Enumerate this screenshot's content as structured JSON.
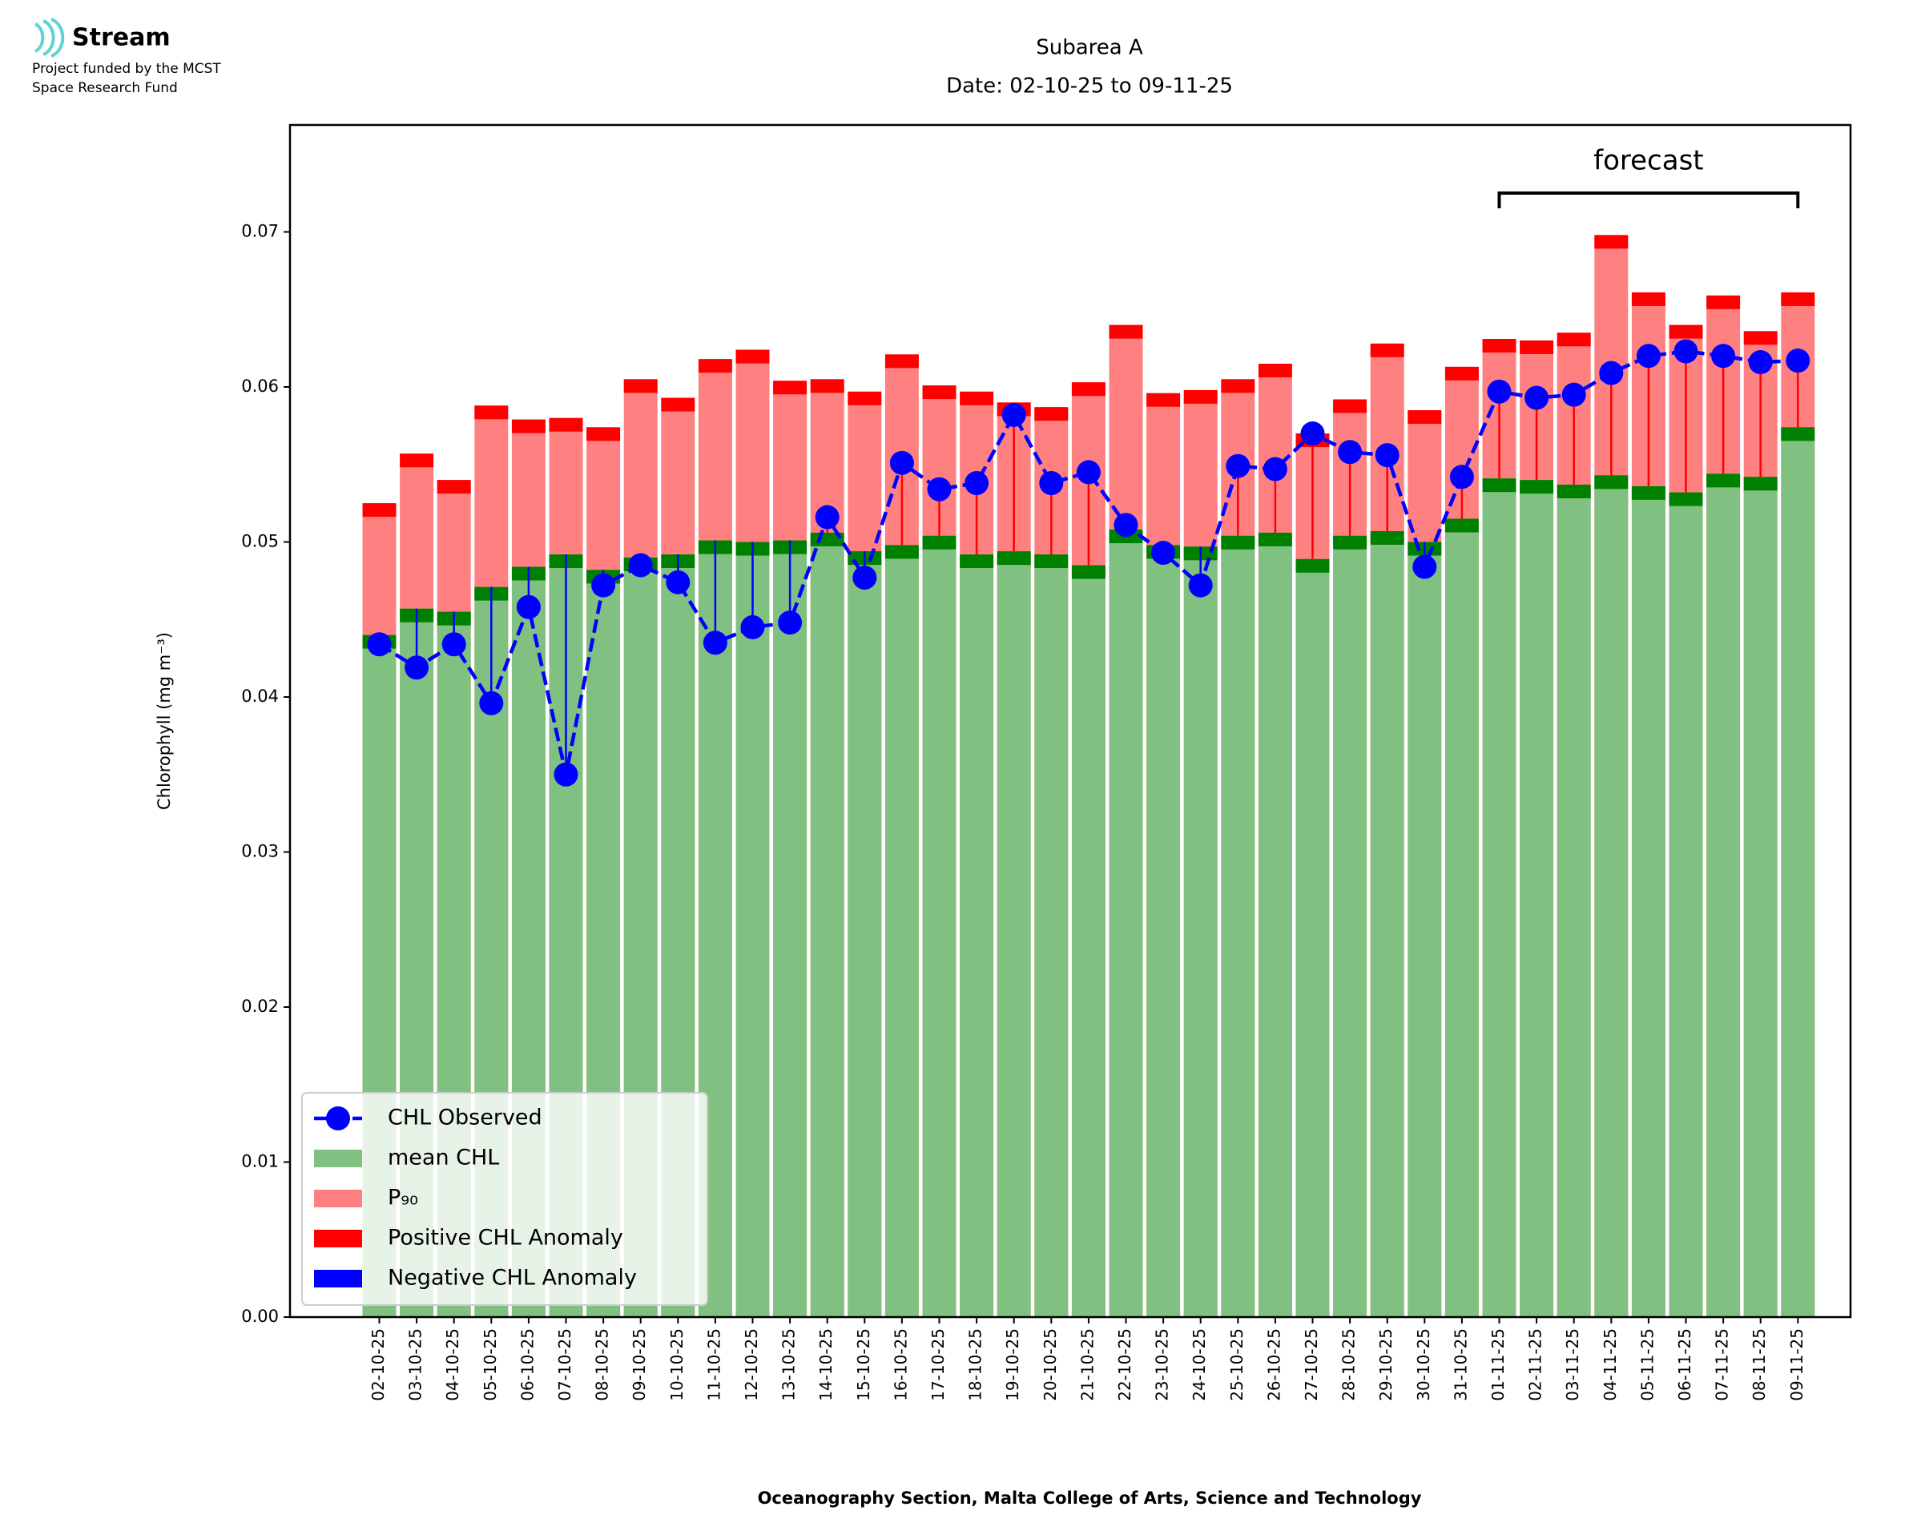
{
  "logo": {
    "name": "Stream",
    "lines": [
      "Project funded by the MCST",
      "Space Research Fund"
    ]
  },
  "chart_data": {
    "type": "bar",
    "title": "Subarea A",
    "subtitle": "Date: 02-10-25 to 09-11-25",
    "y_label": "Chlorophyll (mg m⁻³)",
    "x_label": "Oceanography Section, Malta College of Arts, Science and Technology",
    "annotation": {
      "label": "forecast",
      "from": "01-11-25",
      "to": "09-11-25"
    },
    "categories": [
      "02-10-25",
      "03-10-25",
      "04-10-25",
      "05-10-25",
      "06-10-25",
      "07-10-25",
      "08-10-25",
      "09-10-25",
      "10-10-25",
      "11-10-25",
      "12-10-25",
      "13-10-25",
      "14-10-25",
      "15-10-25",
      "16-10-25",
      "17-10-25",
      "18-10-25",
      "19-10-25",
      "20-10-25",
      "21-10-25",
      "22-10-25",
      "23-10-25",
      "24-10-25",
      "25-10-25",
      "26-10-25",
      "27-10-25",
      "28-10-25",
      "29-10-25",
      "30-10-25",
      "31-10-25",
      "01-11-25",
      "02-11-25",
      "03-11-25",
      "04-11-25",
      "05-11-25",
      "06-11-25",
      "07-11-25",
      "08-11-25",
      "09-11-25"
    ],
    "series": [
      {
        "name": "CHL Observed",
        "color": "#0000ff",
        "values": [
          0.0434,
          0.0419,
          0.0434,
          0.0396,
          0.0458,
          0.035,
          0.0472,
          0.0485,
          0.0474,
          0.0435,
          0.0445,
          0.0448,
          0.0516,
          0.0477,
          0.0551,
          0.0534,
          0.0538,
          0.0582,
          0.0538,
          0.0545,
          0.0511,
          0.0493,
          0.0472,
          0.0549,
          0.0547,
          0.057,
          0.0558,
          0.0556,
          0.0484,
          0.0542,
          0.0597,
          0.0593,
          0.0595,
          0.0609,
          0.062,
          0.0623,
          0.062,
          0.0616,
          0.0617
        ]
      },
      {
        "name": "mean CHL",
        "color": "#80c080",
        "cap_color": "#008000",
        "values": [
          0.044,
          0.0457,
          0.0455,
          0.0471,
          0.0484,
          0.0492,
          0.0482,
          0.049,
          0.0492,
          0.0501,
          0.05,
          0.0501,
          0.0506,
          0.0494,
          0.0498,
          0.0504,
          0.0492,
          0.0494,
          0.0492,
          0.0485,
          0.0508,
          0.0498,
          0.0497,
          0.0504,
          0.0506,
          0.0489,
          0.0504,
          0.0507,
          0.05,
          0.0515,
          0.0541,
          0.054,
          0.0537,
          0.0543,
          0.0536,
          0.0532,
          0.0544,
          0.0542,
          0.0574
        ]
      },
      {
        "name": "P₉₀",
        "color": "#ff8080",
        "values": [
          0.0525,
          0.0557,
          0.054,
          0.0588,
          0.0579,
          0.058,
          0.0574,
          0.0605,
          0.0593,
          0.0618,
          0.0624,
          0.0604,
          0.0605,
          0.0597,
          0.0621,
          0.0601,
          0.0597,
          0.059,
          0.0587,
          0.0603,
          0.064,
          0.0596,
          0.0598,
          0.0605,
          0.0615,
          0.057,
          0.0592,
          0.0628,
          0.0585,
          0.0613,
          0.0631,
          0.063,
          0.0635,
          0.0698,
          0.0661,
          0.064,
          0.0659,
          0.0636,
          0.0661
        ]
      }
    ],
    "anomalies": [
      {
        "name": "Positive CHL Anomaly",
        "color": "#ff0000"
      },
      {
        "name": "Negative CHL Anomaly",
        "color": "#0000ff"
      }
    ],
    "ylim": [
      0,
      0.0769
    ],
    "yticks": [
      {
        "value": 0,
        "label": "0.00"
      },
      0.01,
      0.02,
      0.03,
      0.04,
      0.05,
      0.06,
      0.07
    ],
    "legend": "lower left"
  }
}
